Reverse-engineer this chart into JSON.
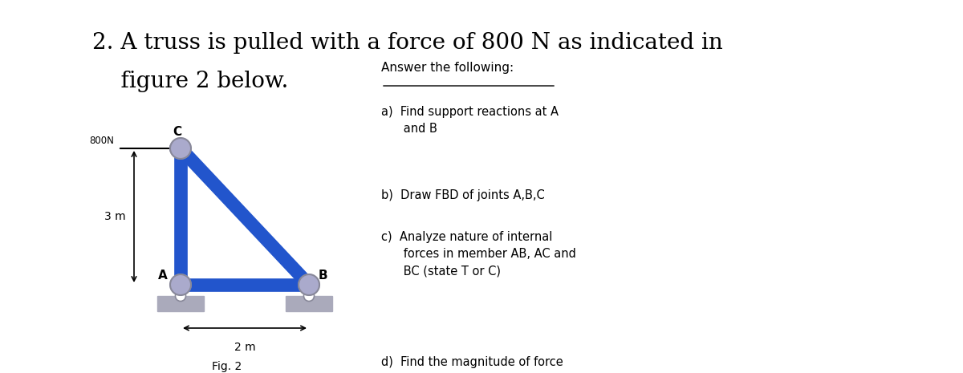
{
  "title_line1": "2. A truss is pulled with a force of 800 N as indicated in",
  "title_line2": "    figure 2 below.",
  "title_fontsize": 20,
  "title_font": "DejaVu Serif",
  "bg_color": "#ffffff",
  "truss_color": "#2255cc",
  "truss_lw": 12,
  "joint_color": "#aaaacc",
  "support_color": "#aaaabb",
  "answer_title": "Answer the following:",
  "answers": [
    "a)  Find support reactions at A\n      and B",
    "b)  Draw FBD of joints A,B,C",
    "c)  Analyze nature of internal\n      forces in member AB, AC and\n      BC (state T or C)",
    "d)  Find the magnitude of force\n      experienced by each members"
  ],
  "force_label": "800N",
  "dim_3m": "3 m",
  "dim_2m": "2 m",
  "fig_label": "Fig. 2"
}
